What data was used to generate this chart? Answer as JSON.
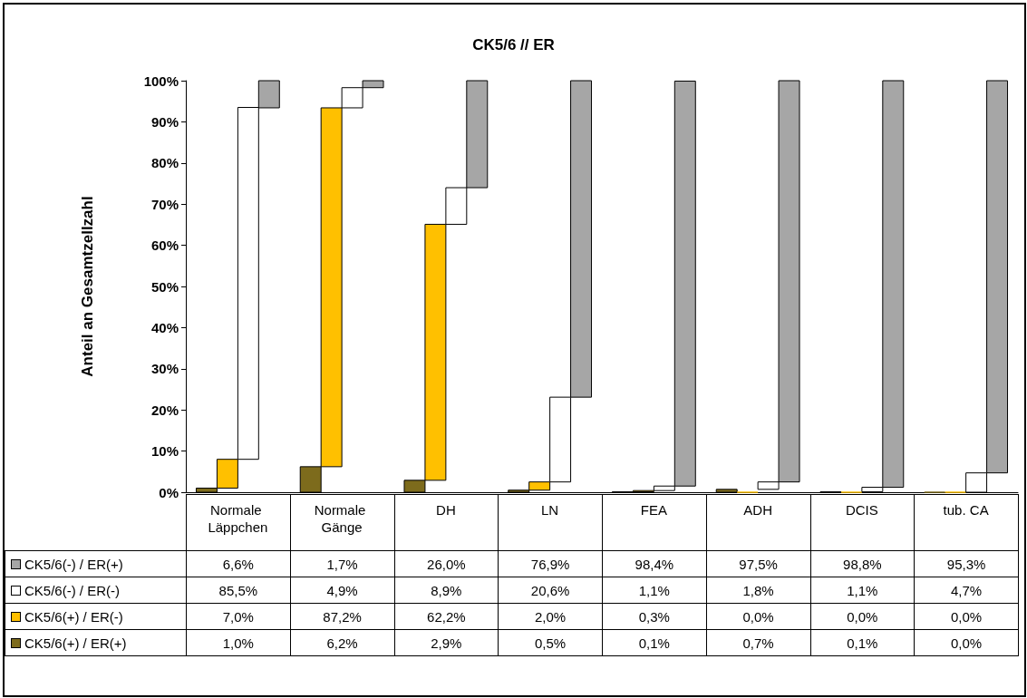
{
  "chart_data": {
    "type": "bar",
    "title": "CK5/6 // ER",
    "ylabel": "Anteil an Gesamtzellzahl",
    "categories": [
      "Normale Läppchen",
      "Normale Gänge",
      "DH",
      "LN",
      "FEA",
      "ADH",
      "DCIS",
      "tub. CA"
    ],
    "ylim": [
      0,
      100
    ],
    "yticks": [
      {
        "value": 0,
        "label": "0%"
      },
      {
        "value": 10,
        "label": "10%"
      },
      {
        "value": 20,
        "label": "20%"
      },
      {
        "value": 30,
        "label": "30%"
      },
      {
        "value": 40,
        "label": "40%"
      },
      {
        "value": 50,
        "label": "50%"
      },
      {
        "value": 60,
        "label": "60%"
      },
      {
        "value": 70,
        "label": "70%"
      },
      {
        "value": 80,
        "label": "80%"
      },
      {
        "value": 90,
        "label": "90%"
      },
      {
        "value": 100,
        "label": "100%"
      }
    ],
    "legend": "bottom",
    "series": [
      {
        "name": "CK5/6(+) / ER(+)",
        "color": "#7d6b1c",
        "values": [
          1.0,
          6.2,
          2.9,
          0.5,
          0.1,
          0.7,
          0.1,
          0.0
        ],
        "value_labels": [
          "1,0%",
          "6,2%",
          "2,9%",
          "0,5%",
          "0,1%",
          "0,7%",
          "0,1%",
          "0,0%"
        ]
      },
      {
        "name": "CK5/6(+) / ER(-)",
        "color": "#ffc000",
        "values": [
          7.0,
          87.2,
          62.2,
          2.0,
          0.3,
          0.0,
          0.0,
          0.0
        ],
        "base": [
          1.0,
          6.2,
          2.9,
          0.5,
          0.1,
          null,
          null,
          null
        ],
        "value_labels": [
          "7,0%",
          "87,2%",
          "62,2%",
          "2,0%",
          "0,3%",
          "0,0%",
          "0,0%",
          "0,0%"
        ]
      },
      {
        "name": "CK5/6(-) / ER(-)",
        "color": "#ffffff",
        "values": [
          85.5,
          4.9,
          8.9,
          20.6,
          1.1,
          1.8,
          1.1,
          4.7
        ],
        "base": [
          8.0,
          93.4,
          65.1,
          2.5,
          0.4,
          0.7,
          0.1,
          0.0
        ],
        "value_labels": [
          "85,5%",
          "4,9%",
          "8,9%",
          "20,6%",
          "1,1%",
          "1,8%",
          "1,1%",
          "4,7%"
        ]
      },
      {
        "name": "CK5/6(-) / ER(+)",
        "color": "#a6a6a6",
        "values": [
          6.6,
          1.7,
          26.0,
          76.9,
          98.4,
          97.5,
          98.8,
          95.3
        ],
        "base": [
          93.4,
          98.3,
          74.0,
          23.1,
          1.5,
          2.5,
          1.2,
          4.7
        ],
        "value_labels": [
          "6,6%",
          "1,7%",
          "26,0%",
          "76,9%",
          "98,4%",
          "97,5%",
          "98,8%",
          "95,3%"
        ]
      }
    ]
  }
}
